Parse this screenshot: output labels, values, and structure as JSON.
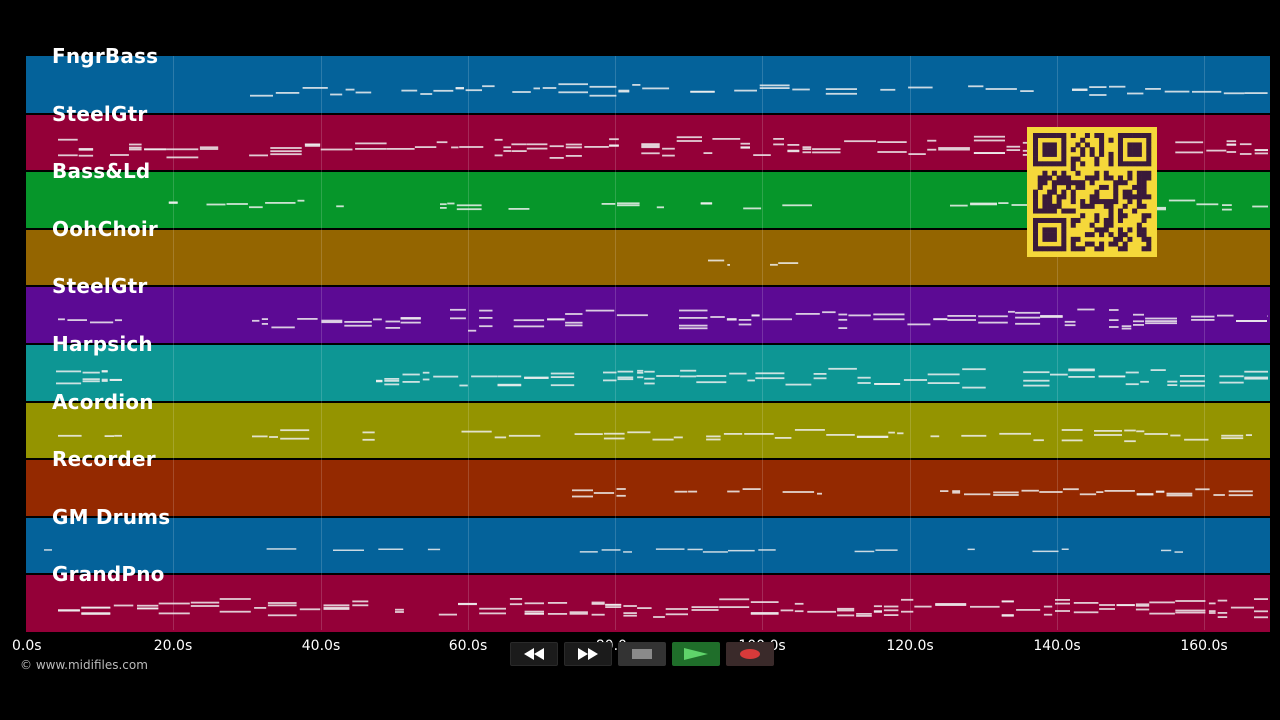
{
  "tracks": [
    {
      "name": "FngrBass",
      "color": "#04629a"
    },
    {
      "name": "SteelGtr",
      "color": "#940038"
    },
    {
      "name": "Bass&Ld",
      "color": "#06962a"
    },
    {
      "name": "OohChoir",
      "color": "#946500"
    },
    {
      "name": "SteelGtr",
      "color": "#5c0a94"
    },
    {
      "name": "Harpsich",
      "color": "#0d9694"
    },
    {
      "name": "Acordion",
      "color": "#949400"
    },
    {
      "name": "Recorder",
      "color": "#942900"
    },
    {
      "name": "GM Drums",
      "color": "#04629a"
    },
    {
      "name": "GrandPno",
      "color": "#940038"
    }
  ],
  "timeline": {
    "ticks": [
      "0.0s",
      "20.0s",
      "40.0s",
      "60.0s",
      "80.0s",
      "100.0s",
      "120.0s",
      "140.0s",
      "160.0s"
    ]
  },
  "copyright": "© www.midifiles.com",
  "transport": {
    "rewind_icon": "rewind-icon",
    "fast_forward_icon": "fast-forward-icon",
    "stop_icon": "stop-icon",
    "play_icon": "play-icon",
    "record_icon": "record-icon"
  },
  "qr_icon": "qr-code-icon"
}
